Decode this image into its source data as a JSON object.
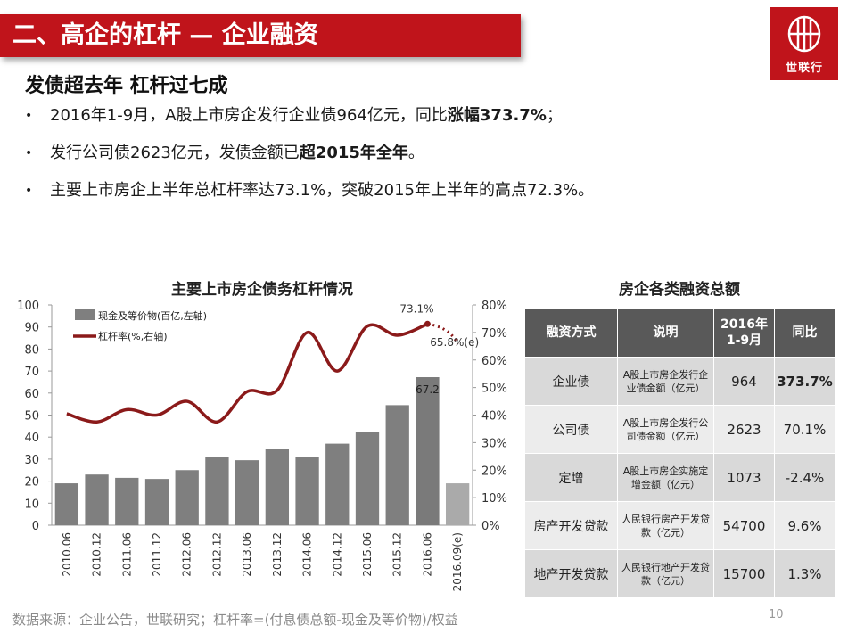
{
  "header": {
    "title": "二、高企的杠杆 — 企业融资",
    "logo_text": "世联行"
  },
  "subtitle": "发债超去年 杠杆过七成",
  "bullets": [
    {
      "pre": "2016年1-9月，A股上市房企发行企业债964亿元，同比",
      "bold": "涨幅373.7%",
      "post": "；"
    },
    {
      "pre": "发行公司债2623亿元，发债金额已",
      "bold": "超2015年全年",
      "post": "。"
    },
    {
      "pre": "主要上市房企上半年总杠杆率达73.1%，突破2015年上半年的高点72.3%。",
      "bold": "",
      "post": ""
    }
  ],
  "chart_data": {
    "type": "bar+line",
    "title": "主要上市房企债务杠杆情况",
    "categories": [
      "2010.06",
      "2010.12",
      "2011.06",
      "2011.12",
      "2012.06",
      "2012.12",
      "2013.06",
      "2013.12",
      "2014.06",
      "2014.12",
      "2015.06",
      "2015.12",
      "2016.06",
      "2016.09(e)"
    ],
    "series": [
      {
        "name": "现金及等价物(百亿,左轴)",
        "type": "bar",
        "axis": "left",
        "color": "#7f7f7f",
        "values": [
          19,
          23,
          21.5,
          21,
          25,
          31,
          29.5,
          34.5,
          31,
          37,
          42.5,
          54.5,
          67.2,
          19
        ]
      },
      {
        "name": "杠杆率(%,右轴)",
        "type": "line",
        "axis": "right",
        "color": "#8b1a1a",
        "values": [
          40.5,
          37.5,
          42,
          40,
          45,
          37.5,
          48.5,
          49,
          70,
          56,
          72.3,
          69,
          73.1,
          65.8
        ]
      }
    ],
    "highlight_bars": {
      "12": "#7a7a7a",
      "13": "#aaaaaa"
    },
    "y_left": {
      "min": 0,
      "max": 100,
      "ticks": [
        "0",
        "10",
        "20",
        "30",
        "40",
        "50",
        "60",
        "70",
        "80",
        "90",
        "100"
      ]
    },
    "y_right": {
      "min": 0,
      "max": 80,
      "ticks": [
        "0%",
        "10%",
        "20%",
        "30%",
        "40%",
        "50%",
        "60%",
        "70%",
        "80%"
      ]
    },
    "data_labels": {
      "bar_label": "67.2",
      "line_label_peak": "73.1%",
      "line_label_est": "65.8%(e)"
    },
    "legend_position": "top-left"
  },
  "table": {
    "title": "房企各类融资总额",
    "headers": [
      "融资方式",
      "说明",
      "2016年\n1-9月",
      "同比"
    ],
    "rows": [
      {
        "type": "企业债",
        "desc": "A股上市房企发行企业债金额（亿元）",
        "amount": "964",
        "yoy": "373.7%",
        "bold": true
      },
      {
        "type": "公司债",
        "desc": "A股上市房企发行公司债金额（亿元）",
        "amount": "2623",
        "yoy": "70.1%",
        "bold": false
      },
      {
        "type": "定增",
        "desc": "A股上市房企实施定增金额（亿元）",
        "amount": "1073",
        "yoy": "-2.4%",
        "bold": false
      },
      {
        "type": "房产开发贷款",
        "desc": "人民银行房产开发贷款（亿元）",
        "amount": "54700",
        "yoy": "9.6%",
        "bold": false
      },
      {
        "type": "地产开发贷款",
        "desc": "人民银行地产开发贷款（亿元）",
        "amount": "15700",
        "yoy": "1.3%",
        "bold": false
      }
    ]
  },
  "footer": {
    "source": "数据来源：企业公告，世联研究；杠杆率=(付息债总额-现金及等价物)/权益",
    "page": "10"
  },
  "colors": {
    "brand_red": "#c0141b",
    "bar_gray": "#7f7f7f",
    "line_red": "#8b1a1a",
    "table_header": "#595959"
  }
}
